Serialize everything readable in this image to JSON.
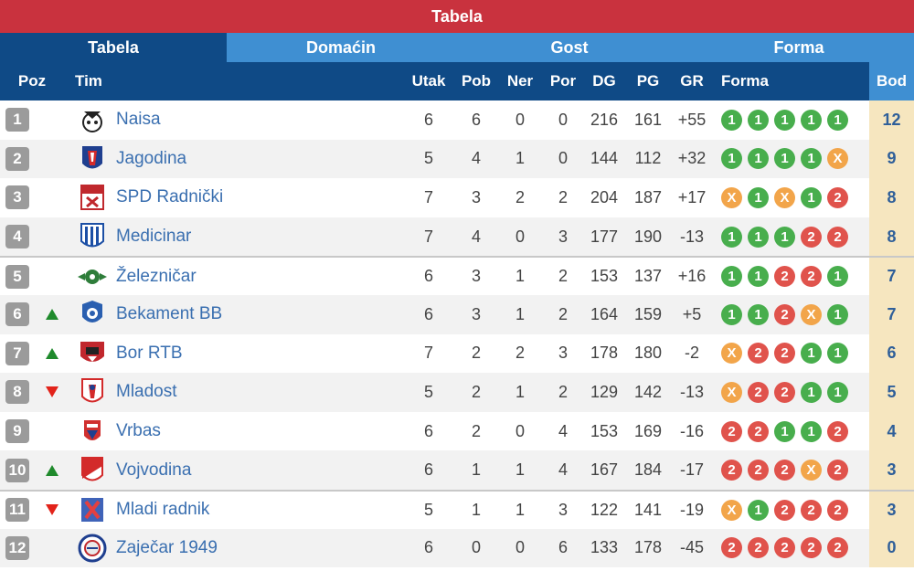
{
  "title": "Tabela",
  "tabs": [
    {
      "label": "Tabela",
      "active": true
    },
    {
      "label": "Domaćin",
      "active": false
    },
    {
      "label": "Gost",
      "active": false
    },
    {
      "label": "Forma",
      "active": false
    }
  ],
  "columns": {
    "poz": "Poz",
    "tim": "Tim",
    "utak": "Utak",
    "pob": "Pob",
    "ner": "Ner",
    "por": "Por",
    "dg": "DG",
    "pg": "PG",
    "gr": "GR",
    "forma": "Forma",
    "bod": "Bod"
  },
  "colors": {
    "win": "#48ae4d",
    "draw": "#f2a54a",
    "loss": "#e0534c",
    "header": "#0f4a86",
    "title": "#c9323e"
  },
  "rows": [
    {
      "pos": "1",
      "trend": "",
      "team": "Naisa",
      "utak": "6",
      "pob": "6",
      "ner": "0",
      "por": "0",
      "dg": "216",
      "pg": "161",
      "gr": "+55",
      "forma": [
        "1",
        "1",
        "1",
        "1",
        "1"
      ],
      "bod": "12"
    },
    {
      "pos": "2",
      "trend": "",
      "team": "Jagodina",
      "utak": "5",
      "pob": "4",
      "ner": "1",
      "por": "0",
      "dg": "144",
      "pg": "112",
      "gr": "+32",
      "forma": [
        "1",
        "1",
        "1",
        "1",
        "X"
      ],
      "bod": "9"
    },
    {
      "pos": "3",
      "trend": "",
      "team": "SPD Radnički",
      "utak": "7",
      "pob": "3",
      "ner": "2",
      "por": "2",
      "dg": "204",
      "pg": "187",
      "gr": "+17",
      "forma": [
        "X",
        "1",
        "X",
        "1",
        "2"
      ],
      "bod": "8"
    },
    {
      "pos": "4",
      "trend": "",
      "team": "Medicinar",
      "utak": "7",
      "pob": "4",
      "ner": "0",
      "por": "3",
      "dg": "177",
      "pg": "190",
      "gr": "-13",
      "forma": [
        "1",
        "1",
        "1",
        "2",
        "2"
      ],
      "bod": "8"
    },
    {
      "pos": "5",
      "trend": "",
      "team": "Železničar",
      "utak": "6",
      "pob": "3",
      "ner": "1",
      "por": "2",
      "dg": "153",
      "pg": "137",
      "gr": "+16",
      "forma": [
        "1",
        "1",
        "2",
        "2",
        "1"
      ],
      "bod": "7"
    },
    {
      "pos": "6",
      "trend": "up",
      "team": "Bekament BB",
      "utak": "6",
      "pob": "3",
      "ner": "1",
      "por": "2",
      "dg": "164",
      "pg": "159",
      "gr": "+5",
      "forma": [
        "1",
        "1",
        "2",
        "X",
        "1"
      ],
      "bod": "7"
    },
    {
      "pos": "7",
      "trend": "up",
      "team": "Bor RTB",
      "utak": "7",
      "pob": "2",
      "ner": "2",
      "por": "3",
      "dg": "178",
      "pg": "180",
      "gr": "-2",
      "forma": [
        "X",
        "2",
        "2",
        "1",
        "1"
      ],
      "bod": "6"
    },
    {
      "pos": "8",
      "trend": "down",
      "team": "Mladost",
      "utak": "5",
      "pob": "2",
      "ner": "1",
      "por": "2",
      "dg": "129",
      "pg": "142",
      "gr": "-13",
      "forma": [
        "X",
        "2",
        "2",
        "1",
        "1"
      ],
      "bod": "5"
    },
    {
      "pos": "9",
      "trend": "",
      "team": "Vrbas",
      "utak": "6",
      "pob": "2",
      "ner": "0",
      "por": "4",
      "dg": "153",
      "pg": "169",
      "gr": "-16",
      "forma": [
        "2",
        "2",
        "1",
        "1",
        "2"
      ],
      "bod": "4"
    },
    {
      "pos": "10",
      "trend": "up",
      "team": "Vojvodina",
      "utak": "6",
      "pob": "1",
      "ner": "1",
      "por": "4",
      "dg": "167",
      "pg": "184",
      "gr": "-17",
      "forma": [
        "2",
        "2",
        "2",
        "X",
        "2"
      ],
      "bod": "3"
    },
    {
      "pos": "11",
      "trend": "down",
      "team": "Mladi radnik",
      "utak": "5",
      "pob": "1",
      "ner": "1",
      "por": "3",
      "dg": "122",
      "pg": "141",
      "gr": "-19",
      "forma": [
        "X",
        "1",
        "2",
        "2",
        "2"
      ],
      "bod": "3"
    },
    {
      "pos": "12",
      "trend": "",
      "team": "Zaječar 1949",
      "utak": "6",
      "pob": "0",
      "ner": "0",
      "por": "6",
      "dg": "133",
      "pg": "178",
      "gr": "-45",
      "forma": [
        "2",
        "2",
        "2",
        "2",
        "2"
      ],
      "bod": "0"
    }
  ]
}
